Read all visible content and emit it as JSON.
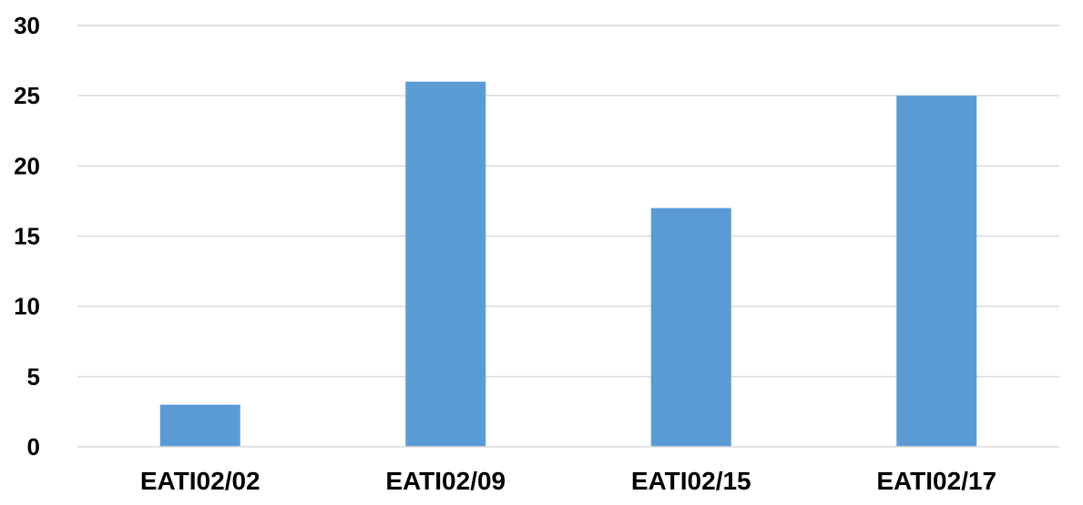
{
  "chart_data": {
    "type": "bar",
    "categories": [
      "EATI02/02",
      "EATI02/09",
      "EATI02/15",
      "EATI02/17"
    ],
    "values": [
      3,
      26,
      17,
      25
    ],
    "ylim": [
      0,
      30
    ],
    "yticks": [
      0,
      5,
      10,
      15,
      20,
      25,
      30
    ],
    "grid": true,
    "colors": {
      "bar": "#5b9bd5",
      "grid": "#d9d9d9",
      "axis": "#d9d9d9"
    }
  }
}
